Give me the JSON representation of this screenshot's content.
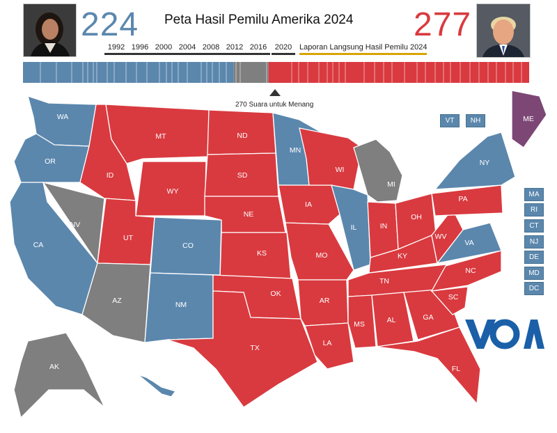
{
  "header": {
    "title": "Peta Hasil Pemilu Amerika 2024",
    "dem_votes": "224",
    "rep_votes": "277",
    "threshold_label": "270 Suara untuk Menang",
    "years": [
      "1992",
      "1996",
      "2000",
      "2004",
      "2008",
      "2012",
      "2016",
      "2020"
    ],
    "live_label": "Laporan Langsung Hasil Pemilu 2024"
  },
  "colors": {
    "dem": "#5b87ad",
    "rep": "#d93a3f",
    "undecided": "#7f7f7f",
    "me_split": "#7c4775",
    "voa": "#1b5fa8",
    "live_underline": "#d9a400"
  },
  "progress": {
    "total_ev": 538,
    "dem_ev": 224,
    "undecided_ev": 37,
    "rep_ev": 277
  },
  "states": [
    {
      "code": "WA",
      "result": "dem"
    },
    {
      "code": "OR",
      "result": "dem"
    },
    {
      "code": "CA",
      "result": "dem"
    },
    {
      "code": "NV",
      "result": "undecided"
    },
    {
      "code": "ID",
      "result": "rep"
    },
    {
      "code": "MT",
      "result": "rep"
    },
    {
      "code": "WY",
      "result": "rep"
    },
    {
      "code": "UT",
      "result": "rep"
    },
    {
      "code": "AZ",
      "result": "undecided"
    },
    {
      "code": "CO",
      "result": "dem"
    },
    {
      "code": "NM",
      "result": "dem"
    },
    {
      "code": "ND",
      "result": "rep"
    },
    {
      "code": "SD",
      "result": "rep"
    },
    {
      "code": "NE",
      "result": "rep"
    },
    {
      "code": "KS",
      "result": "rep"
    },
    {
      "code": "OK",
      "result": "rep"
    },
    {
      "code": "TX",
      "result": "rep"
    },
    {
      "code": "MN",
      "result": "dem"
    },
    {
      "code": "IA",
      "result": "rep"
    },
    {
      "code": "MO",
      "result": "rep"
    },
    {
      "code": "AR",
      "result": "rep"
    },
    {
      "code": "LA",
      "result": "rep"
    },
    {
      "code": "WI",
      "result": "rep"
    },
    {
      "code": "IL",
      "result": "dem"
    },
    {
      "code": "MI",
      "result": "undecided"
    },
    {
      "code": "IN",
      "result": "rep"
    },
    {
      "code": "OH",
      "result": "rep"
    },
    {
      "code": "KY",
      "result": "rep"
    },
    {
      "code": "TN",
      "result": "rep"
    },
    {
      "code": "MS",
      "result": "rep"
    },
    {
      "code": "AL",
      "result": "rep"
    },
    {
      "code": "GA",
      "result": "rep"
    },
    {
      "code": "FL",
      "result": "rep"
    },
    {
      "code": "SC",
      "result": "rep"
    },
    {
      "code": "NC",
      "result": "rep"
    },
    {
      "code": "VA",
      "result": "dem"
    },
    {
      "code": "WV",
      "result": "rep"
    },
    {
      "code": "PA",
      "result": "rep"
    },
    {
      "code": "NY",
      "result": "dem"
    },
    {
      "code": "ME",
      "result": "split"
    },
    {
      "code": "AK",
      "result": "undecided"
    },
    {
      "code": "HI",
      "result": "dem"
    }
  ],
  "northeast_boxes": [
    "VT",
    "NH",
    "MA",
    "RI",
    "CT",
    "NJ",
    "DE",
    "MD",
    "DC"
  ],
  "logo_text": "VOA"
}
